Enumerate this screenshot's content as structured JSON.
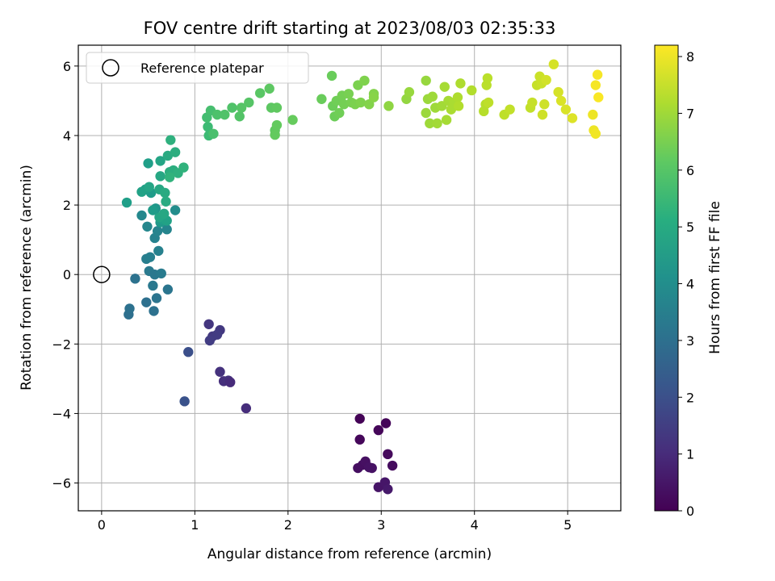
{
  "chart_data": {
    "type": "scatter",
    "title": "FOV centre drift starting at 2023/08/03 02:35:33",
    "xlabel": "Angular distance from reference (arcmin)",
    "ylabel": "Rotation from reference (arcmin)",
    "xlim": [
      -0.25,
      5.57
    ],
    "ylim": [
      -6.8,
      6.6
    ],
    "xticks": [
      "0",
      "1",
      "2",
      "3",
      "4",
      "5"
    ],
    "yticks": [
      "6",
      "4",
      "2",
      "0",
      "−2",
      "−4",
      "−6"
    ],
    "grid": true,
    "legend": {
      "position": "top-left",
      "entries": [
        "Reference platepar"
      ]
    },
    "reference_point": {
      "x": 0,
      "y": 0
    },
    "colorbar": {
      "label": "Hours from first FF file",
      "range": [
        0,
        8.2
      ],
      "ticks": [
        "0",
        "1",
        "2",
        "3",
        "4",
        "5",
        "6",
        "7",
        "8"
      ],
      "colormap": "viridis"
    },
    "points": [
      {
        "x": 2.77,
        "y": -4.15,
        "t": 0.05
      },
      {
        "x": 3.05,
        "y": -4.28,
        "t": 0.1
      },
      {
        "x": 2.97,
        "y": -4.48,
        "t": 0.12
      },
      {
        "x": 2.77,
        "y": -4.75,
        "t": 0.15
      },
      {
        "x": 3.07,
        "y": -5.17,
        "t": 0.2
      },
      {
        "x": 3.12,
        "y": -5.5,
        "t": 0.25
      },
      {
        "x": 2.75,
        "y": -5.57,
        "t": 0.3
      },
      {
        "x": 2.8,
        "y": -5.48,
        "t": 0.3
      },
      {
        "x": 2.83,
        "y": -5.38,
        "t": 0.35
      },
      {
        "x": 2.87,
        "y": -5.55,
        "t": 0.4
      },
      {
        "x": 2.9,
        "y": -5.57,
        "t": 0.4
      },
      {
        "x": 2.97,
        "y": -6.12,
        "t": 0.45
      },
      {
        "x": 3.04,
        "y": -5.98,
        "t": 0.5
      },
      {
        "x": 3.07,
        "y": -6.18,
        "t": 0.55
      },
      {
        "x": 1.15,
        "y": -1.43,
        "t": 1.3
      },
      {
        "x": 1.27,
        "y": -1.6,
        "t": 1.35
      },
      {
        "x": 1.19,
        "y": -1.78,
        "t": 1.4
      },
      {
        "x": 1.24,
        "y": -1.73,
        "t": 1.45
      },
      {
        "x": 1.16,
        "y": -1.9,
        "t": 1.5
      },
      {
        "x": 1.27,
        "y": -2.8,
        "t": 1.2
      },
      {
        "x": 1.31,
        "y": -3.07,
        "t": 1.1
      },
      {
        "x": 1.36,
        "y": -3.05,
        "t": 1.15
      },
      {
        "x": 1.38,
        "y": -3.1,
        "t": 1.0
      },
      {
        "x": 1.55,
        "y": -3.85,
        "t": 1.05
      },
      {
        "x": 0.93,
        "y": -2.23,
        "t": 2.0
      },
      {
        "x": 0.89,
        "y": -3.65,
        "t": 2.1
      },
      {
        "x": 0.29,
        "y": -1.15,
        "t": 3.0
      },
      {
        "x": 0.3,
        "y": -0.98,
        "t": 3.05
      },
      {
        "x": 0.36,
        "y": -0.12,
        "t": 3.1
      },
      {
        "x": 0.48,
        "y": -0.8,
        "t": 3.0
      },
      {
        "x": 0.56,
        "y": -1.05,
        "t": 3.05
      },
      {
        "x": 0.59,
        "y": -0.68,
        "t": 3.15
      },
      {
        "x": 0.71,
        "y": -0.43,
        "t": 3.2
      },
      {
        "x": 0.55,
        "y": -0.32,
        "t": 3.3
      },
      {
        "x": 0.51,
        "y": 0.1,
        "t": 3.35
      },
      {
        "x": 0.57,
        "y": 0.0,
        "t": 3.3
      },
      {
        "x": 0.64,
        "y": 0.03,
        "t": 3.4
      },
      {
        "x": 0.48,
        "y": 0.45,
        "t": 3.5
      },
      {
        "x": 0.52,
        "y": 0.5,
        "t": 3.55
      },
      {
        "x": 0.61,
        "y": 0.68,
        "t": 3.6
      },
      {
        "x": 0.57,
        "y": 1.05,
        "t": 3.65
      },
      {
        "x": 0.6,
        "y": 1.25,
        "t": 3.7
      },
      {
        "x": 0.7,
        "y": 1.3,
        "t": 3.75
      },
      {
        "x": 0.49,
        "y": 1.38,
        "t": 3.8
      },
      {
        "x": 0.43,
        "y": 1.7,
        "t": 3.85
      },
      {
        "x": 0.79,
        "y": 1.85,
        "t": 4.0
      },
      {
        "x": 0.63,
        "y": 1.5,
        "t": 4.4
      },
      {
        "x": 0.66,
        "y": 1.58,
        "t": 4.6
      },
      {
        "x": 0.7,
        "y": 1.55,
        "t": 4.7
      },
      {
        "x": 0.62,
        "y": 1.65,
        "t": 4.8
      },
      {
        "x": 0.67,
        "y": 1.75,
        "t": 4.9
      },
      {
        "x": 0.58,
        "y": 1.9,
        "t": 4.3
      },
      {
        "x": 0.53,
        "y": 2.35,
        "t": 4.5
      },
      {
        "x": 0.47,
        "y": 2.45,
        "t": 4.6
      },
      {
        "x": 0.43,
        "y": 2.38,
        "t": 4.7
      },
      {
        "x": 0.51,
        "y": 2.52,
        "t": 4.8
      },
      {
        "x": 0.62,
        "y": 2.45,
        "t": 4.9
      },
      {
        "x": 0.68,
        "y": 2.35,
        "t": 5.0
      },
      {
        "x": 0.27,
        "y": 2.07,
        "t": 4.6
      },
      {
        "x": 0.69,
        "y": 2.1,
        "t": 5.0
      },
      {
        "x": 0.55,
        "y": 1.85,
        "t": 4.5
      },
      {
        "x": 0.5,
        "y": 3.2,
        "t": 4.6
      },
      {
        "x": 0.63,
        "y": 3.27,
        "t": 4.8
      },
      {
        "x": 0.63,
        "y": 2.83,
        "t": 4.9
      },
      {
        "x": 0.73,
        "y": 2.95,
        "t": 5.1
      },
      {
        "x": 0.77,
        "y": 3.0,
        "t": 5.1
      },
      {
        "x": 0.82,
        "y": 2.92,
        "t": 5.2
      },
      {
        "x": 0.88,
        "y": 3.08,
        "t": 5.3
      },
      {
        "x": 0.71,
        "y": 3.42,
        "t": 5.0
      },
      {
        "x": 0.79,
        "y": 3.52,
        "t": 5.1
      },
      {
        "x": 0.74,
        "y": 3.87,
        "t": 5.2
      },
      {
        "x": 0.73,
        "y": 2.8,
        "t": 5.3
      },
      {
        "x": 1.14,
        "y": 4.25,
        "t": 5.6
      },
      {
        "x": 1.15,
        "y": 4.0,
        "t": 5.6
      },
      {
        "x": 1.13,
        "y": 4.52,
        "t": 5.7
      },
      {
        "x": 1.17,
        "y": 4.72,
        "t": 5.75
      },
      {
        "x": 1.2,
        "y": 4.05,
        "t": 5.8
      },
      {
        "x": 1.24,
        "y": 4.6,
        "t": 5.85
      },
      {
        "x": 1.32,
        "y": 4.6,
        "t": 5.9
      },
      {
        "x": 1.4,
        "y": 4.8,
        "t": 5.9
      },
      {
        "x": 1.48,
        "y": 4.55,
        "t": 5.95
      },
      {
        "x": 1.5,
        "y": 4.8,
        "t": 6.0
      },
      {
        "x": 1.58,
        "y": 4.95,
        "t": 6.0
      },
      {
        "x": 1.7,
        "y": 5.22,
        "t": 6.05
      },
      {
        "x": 1.8,
        "y": 5.35,
        "t": 6.1
      },
      {
        "x": 1.82,
        "y": 4.8,
        "t": 6.1
      },
      {
        "x": 1.88,
        "y": 4.8,
        "t": 6.15
      },
      {
        "x": 1.86,
        "y": 4.15,
        "t": 6.15
      },
      {
        "x": 1.88,
        "y": 4.3,
        "t": 6.2
      },
      {
        "x": 1.86,
        "y": 4.02,
        "t": 6.2
      },
      {
        "x": 2.05,
        "y": 4.45,
        "t": 6.25
      },
      {
        "x": 2.36,
        "y": 5.05,
        "t": 6.3
      },
      {
        "x": 2.47,
        "y": 5.72,
        "t": 6.3
      },
      {
        "x": 2.48,
        "y": 4.85,
        "t": 6.35
      },
      {
        "x": 2.5,
        "y": 4.55,
        "t": 6.35
      },
      {
        "x": 2.52,
        "y": 5.0,
        "t": 6.4
      },
      {
        "x": 2.55,
        "y": 4.65,
        "t": 6.4
      },
      {
        "x": 2.58,
        "y": 5.15,
        "t": 6.45
      },
      {
        "x": 2.6,
        "y": 4.9,
        "t": 6.45
      },
      {
        "x": 2.65,
        "y": 5.2,
        "t": 6.5
      },
      {
        "x": 2.68,
        "y": 4.95,
        "t": 6.5
      },
      {
        "x": 2.72,
        "y": 4.9,
        "t": 6.55
      },
      {
        "x": 2.75,
        "y": 5.45,
        "t": 6.55
      },
      {
        "x": 2.78,
        "y": 4.95,
        "t": 6.6
      },
      {
        "x": 2.82,
        "y": 5.58,
        "t": 6.6
      },
      {
        "x": 2.87,
        "y": 4.9,
        "t": 6.65
      },
      {
        "x": 2.92,
        "y": 5.2,
        "t": 6.65
      },
      {
        "x": 2.92,
        "y": 5.1,
        "t": 6.7
      },
      {
        "x": 3.08,
        "y": 4.85,
        "t": 6.8
      },
      {
        "x": 3.27,
        "y": 5.05,
        "t": 6.85
      },
      {
        "x": 3.3,
        "y": 5.25,
        "t": 6.9
      },
      {
        "x": 3.48,
        "y": 5.58,
        "t": 6.9
      },
      {
        "x": 3.5,
        "y": 5.05,
        "t": 6.95
      },
      {
        "x": 3.48,
        "y": 4.65,
        "t": 6.95
      },
      {
        "x": 3.52,
        "y": 4.35,
        "t": 7.0
      },
      {
        "x": 3.55,
        "y": 5.12,
        "t": 7.0
      },
      {
        "x": 3.58,
        "y": 4.8,
        "t": 7.0
      },
      {
        "x": 3.6,
        "y": 4.35,
        "t": 7.05
      },
      {
        "x": 3.65,
        "y": 4.85,
        "t": 7.05
      },
      {
        "x": 3.68,
        "y": 5.4,
        "t": 7.1
      },
      {
        "x": 3.7,
        "y": 4.45,
        "t": 7.1
      },
      {
        "x": 3.72,
        "y": 5.0,
        "t": 7.1
      },
      {
        "x": 3.75,
        "y": 4.75,
        "t": 7.15
      },
      {
        "x": 3.78,
        "y": 4.95,
        "t": 7.15
      },
      {
        "x": 3.82,
        "y": 5.1,
        "t": 7.2
      },
      {
        "x": 3.85,
        "y": 5.5,
        "t": 7.2
      },
      {
        "x": 3.83,
        "y": 4.85,
        "t": 7.25
      },
      {
        "x": 3.97,
        "y": 5.3,
        "t": 7.25
      },
      {
        "x": 4.1,
        "y": 4.7,
        "t": 7.3
      },
      {
        "x": 4.12,
        "y": 4.9,
        "t": 7.3
      },
      {
        "x": 4.13,
        "y": 5.45,
        "t": 7.35
      },
      {
        "x": 4.14,
        "y": 5.65,
        "t": 7.35
      },
      {
        "x": 4.15,
        "y": 4.95,
        "t": 7.4
      },
      {
        "x": 4.32,
        "y": 4.6,
        "t": 7.4
      },
      {
        "x": 4.38,
        "y": 4.75,
        "t": 7.45
      },
      {
        "x": 4.6,
        "y": 4.8,
        "t": 7.45
      },
      {
        "x": 4.62,
        "y": 4.95,
        "t": 7.5
      },
      {
        "x": 4.67,
        "y": 5.45,
        "t": 7.5
      },
      {
        "x": 4.7,
        "y": 5.7,
        "t": 7.55
      },
      {
        "x": 4.72,
        "y": 5.5,
        "t": 7.55
      },
      {
        "x": 4.73,
        "y": 4.6,
        "t": 7.6
      },
      {
        "x": 4.75,
        "y": 4.9,
        "t": 7.6
      },
      {
        "x": 4.77,
        "y": 5.6,
        "t": 7.65
      },
      {
        "x": 4.85,
        "y": 6.05,
        "t": 7.7
      },
      {
        "x": 4.9,
        "y": 5.25,
        "t": 7.7
      },
      {
        "x": 4.93,
        "y": 5.0,
        "t": 7.75
      },
      {
        "x": 4.98,
        "y": 4.75,
        "t": 7.75
      },
      {
        "x": 5.05,
        "y": 4.5,
        "t": 7.8
      },
      {
        "x": 5.27,
        "y": 4.6,
        "t": 8.0
      },
      {
        "x": 5.28,
        "y": 4.15,
        "t": 8.0
      },
      {
        "x": 5.3,
        "y": 4.05,
        "t": 8.05
      },
      {
        "x": 5.3,
        "y": 5.45,
        "t": 8.1
      },
      {
        "x": 5.32,
        "y": 5.75,
        "t": 8.1
      },
      {
        "x": 5.33,
        "y": 5.1,
        "t": 8.15
      }
    ]
  }
}
